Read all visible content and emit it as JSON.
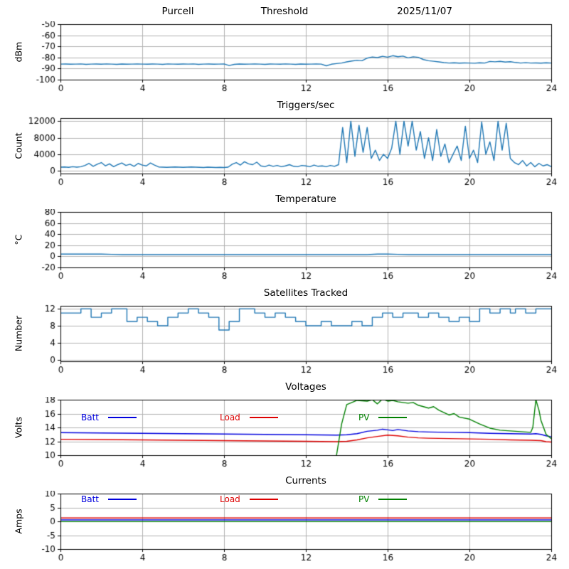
{
  "style": {
    "background": "#ffffff",
    "grid_color": "#b0b0b0",
    "axis_color": "#000000",
    "tick_label_color": "#000000"
  },
  "chart_data": [
    {
      "id": "signal",
      "type": "line",
      "title_parts": [
        "Purcell",
        "Threshold",
        "2025/11/07"
      ],
      "ylabel": "dBm",
      "xlim": [
        0,
        24
      ],
      "ylim": [
        -100,
        -50
      ],
      "xticks": [
        0,
        4,
        8,
        12,
        16,
        20,
        24
      ],
      "yticks": [
        -50,
        -60,
        -70,
        -80,
        -90,
        -100
      ],
      "grid": true,
      "line_color": "#1f77b4",
      "x_start": 0,
      "x_step": 0.25,
      "values": [
        -86,
        -85.9,
        -86.1,
        -86,
        -85.8,
        -86.2,
        -86,
        -85.9,
        -86.1,
        -85.8,
        -86,
        -86.2,
        -85.9,
        -86.1,
        -86,
        -85.8,
        -86,
        -86.1,
        -85.9,
        -86,
        -86.2,
        -85.8,
        -86,
        -86.1,
        -85.9,
        -86,
        -85.8,
        -86.2,
        -86,
        -85.9,
        -86.1,
        -86,
        -85.8,
        -87.3,
        -86.2,
        -85.9,
        -86.1,
        -86,
        -85.8,
        -86,
        -86.2,
        -85.9,
        -86,
        -86.1,
        -85.8,
        -86,
        -86.2,
        -85.9,
        -86.1,
        -86,
        -85.8,
        -86,
        -87.5,
        -86.1,
        -85.5,
        -85,
        -84,
        -83.2,
        -82.6,
        -82.9,
        -80.6,
        -79.6,
        -80.1,
        -78.9,
        -79.7,
        -78.4,
        -79.3,
        -78.8,
        -80.4,
        -79.4,
        -79.9,
        -81.9,
        -82.9,
        -83.4,
        -84,
        -84.6,
        -85,
        -84.8,
        -85.1,
        -84.9,
        -85,
        -85.2,
        -84.8,
        -85,
        -83.6,
        -83.9,
        -83.5,
        -84.1,
        -83.8,
        -84.5,
        -85,
        -84.7,
        -85,
        -84.9,
        -85.1,
        -84.8,
        -85
      ]
    },
    {
      "id": "triggers",
      "type": "line",
      "title": "Triggers/sec",
      "ylabel": "Count",
      "xlim": [
        0,
        24
      ],
      "ylim": [
        -650,
        12750
      ],
      "xticks": [
        0,
        4,
        8,
        12,
        16,
        20,
        24
      ],
      "yticks": [
        0,
        4000,
        8000,
        12000
      ],
      "grid": true,
      "line_color": "#1f77b4",
      "x_start": 0,
      "x_step": 0.2,
      "values": [
        900,
        950,
        850,
        1000,
        900,
        1000,
        1300,
        1800,
        1100,
        1600,
        2000,
        1200,
        1700,
        1000,
        1500,
        1900,
        1300,
        1600,
        1100,
        1800,
        1400,
        1200,
        1900,
        1400,
        950,
        900,
        850,
        900,
        950,
        900,
        850,
        900,
        950,
        900,
        850,
        800,
        900,
        850,
        800,
        850,
        800,
        900,
        1600,
        2000,
        1400,
        2200,
        1700,
        1500,
        2100,
        1200,
        1000,
        1400,
        1100,
        1300,
        1000,
        1200,
        1500,
        1100,
        1000,
        1300,
        1200,
        1000,
        1400,
        1100,
        1200,
        1000,
        1300,
        1100,
        1500,
        10500,
        2000,
        12000,
        3500,
        11000,
        4500,
        10500,
        3000,
        5000,
        2500,
        4000,
        3000,
        5500,
        12000,
        4000,
        12000,
        6000,
        12000,
        5000,
        9500,
        3000,
        8000,
        2500,
        10000,
        3500,
        6500,
        2000,
        4000,
        6000,
        2500,
        10800,
        3000,
        5000,
        2000,
        11800,
        4000,
        7000,
        2500,
        12000,
        5000,
        11500,
        3000,
        2000,
        1500,
        2500,
        1200,
        2000,
        1000,
        1800,
        1200,
        1500,
        1000
      ]
    },
    {
      "id": "temperature",
      "type": "line",
      "title": "Temperature",
      "ylabel": "°C",
      "xlim": [
        0,
        24
      ],
      "ylim": [
        -20,
        80
      ],
      "xticks": [
        0,
        4,
        8,
        12,
        16,
        20,
        24
      ],
      "yticks": [
        -20,
        0,
        20,
        40,
        60,
        80
      ],
      "grid": true,
      "line_color": "#1f77b4",
      "x_start": 0,
      "x_step": 0.5,
      "values": [
        4,
        4,
        4,
        4,
        4,
        3.5,
        3,
        3,
        3,
        3,
        3,
        3,
        3,
        3,
        3,
        3,
        3,
        3,
        3,
        3,
        3,
        3,
        3,
        3,
        3,
        3,
        3,
        3,
        3,
        3,
        3,
        4,
        4,
        3.5,
        3,
        3,
        3,
        3,
        3,
        3,
        3,
        3,
        3,
        3,
        3,
        3,
        3,
        3,
        3
      ]
    },
    {
      "id": "satellites",
      "type": "line",
      "title": "Satellites Tracked",
      "ylabel": "Number",
      "xlim": [
        0,
        24
      ],
      "ylim": [
        -0.4,
        12.7
      ],
      "xticks": [
        0,
        4,
        8,
        12,
        16,
        20,
        24
      ],
      "yticks": [
        0,
        4,
        8,
        12
      ],
      "grid": true,
      "step": true,
      "line_color": "#1f77b4",
      "x_start": 0,
      "x_step": 0.25,
      "values": [
        11,
        11,
        11,
        11,
        12,
        12,
        10,
        10,
        11,
        11,
        12,
        12,
        12,
        9,
        9,
        10,
        10,
        9,
        9,
        8,
        8,
        10,
        10,
        11,
        11,
        12,
        12,
        11,
        11,
        10,
        10,
        7,
        7,
        9,
        9,
        12,
        12,
        12,
        11,
        11,
        10,
        10,
        11,
        11,
        10,
        10,
        9,
        9,
        8,
        8,
        8,
        9,
        9,
        8,
        8,
        8,
        8,
        9,
        9,
        8,
        8,
        10,
        10,
        11,
        11,
        10,
        10,
        11,
        11,
        11,
        10,
        10,
        11,
        11,
        10,
        10,
        9,
        9,
        10,
        10,
        9,
        9,
        12,
        12,
        11,
        11,
        12,
        12,
        11,
        12,
        12,
        11,
        11,
        12,
        12,
        12,
        12
      ]
    },
    {
      "id": "voltages",
      "type": "line",
      "title": "Voltages",
      "ylabel": "Volts",
      "xlim": [
        0,
        24
      ],
      "ylim": [
        10,
        18
      ],
      "xticks": [
        0,
        4,
        8,
        12,
        16,
        20,
        24
      ],
      "yticks": [
        10,
        12,
        14,
        16,
        18
      ],
      "grid": true,
      "legend": [
        {
          "label": "Batt",
          "color": "#0000dd"
        },
        {
          "label": "Load",
          "color": "#dd0000"
        },
        {
          "label": "PV",
          "color": "#008000"
        }
      ],
      "series": [
        {
          "name": "Batt",
          "color": "#0000dd",
          "x": [
            0,
            2,
            4,
            6,
            8,
            10,
            12,
            13.5,
            14,
            14.5,
            15,
            15.5,
            15.75,
            16,
            16.25,
            16.5,
            17,
            17.5,
            18,
            19,
            20,
            21,
            22,
            23,
            23.25,
            23.5,
            23.75,
            24
          ],
          "y": [
            13.25,
            13.2,
            13.15,
            13.1,
            13.05,
            13.0,
            12.95,
            12.9,
            12.95,
            13.1,
            13.45,
            13.6,
            13.75,
            13.65,
            13.55,
            13.7,
            13.5,
            13.4,
            13.35,
            13.3,
            13.25,
            13.15,
            13.1,
            13.05,
            13.1,
            13.0,
            12.8,
            12.65
          ]
        },
        {
          "name": "Load",
          "color": "#dd0000",
          "x": [
            0,
            2,
            4,
            6,
            8,
            10,
            12,
            13.5,
            14,
            14.5,
            15,
            15.5,
            16,
            16.5,
            17,
            17.5,
            18,
            19,
            20,
            21,
            22,
            23,
            23.5,
            23.75,
            24
          ],
          "y": [
            12.3,
            12.25,
            12.2,
            12.15,
            12.1,
            12.05,
            12.0,
            11.95,
            12.0,
            12.2,
            12.5,
            12.7,
            12.9,
            12.8,
            12.6,
            12.5,
            12.45,
            12.4,
            12.35,
            12.3,
            12.2,
            12.15,
            12.1,
            11.95,
            11.9
          ]
        },
        {
          "name": "PV",
          "color": "#008000",
          "x": [
            13.5,
            13.75,
            14,
            14.25,
            14.5,
            15,
            15.25,
            15.5,
            15.75,
            16,
            16.25,
            16.5,
            17,
            17.25,
            17.5,
            18,
            18.25,
            18.5,
            19,
            19.25,
            19.5,
            20,
            20.5,
            21,
            21.5,
            22,
            22.5,
            23,
            23.1,
            23.25,
            23.4,
            23.5,
            23.75,
            24
          ],
          "y": [
            10.0,
            14.5,
            17.3,
            17.6,
            17.9,
            17.8,
            18.0,
            17.4,
            18.1,
            17.8,
            17.9,
            17.7,
            17.5,
            17.6,
            17.2,
            16.8,
            17.0,
            16.5,
            15.8,
            16.0,
            15.5,
            15.2,
            14.5,
            13.9,
            13.6,
            13.5,
            13.4,
            13.3,
            14.0,
            18.0,
            16.5,
            15.0,
            13.0,
            12.4
          ]
        }
      ]
    },
    {
      "id": "currents",
      "type": "line",
      "title": "Currents",
      "ylabel": "Amps",
      "xlim": [
        0,
        24
      ],
      "ylim": [
        -10,
        10
      ],
      "xticks": [
        0,
        4,
        8,
        12,
        16,
        20,
        24
      ],
      "yticks": [
        -10,
        -5,
        0,
        5,
        10
      ],
      "grid": true,
      "legend": [
        {
          "label": "Batt",
          "color": "#0000dd"
        },
        {
          "label": "Load",
          "color": "#dd0000"
        },
        {
          "label": "PV",
          "color": "#008000"
        }
      ],
      "series": [
        {
          "name": "Batt",
          "color": "#0000dd",
          "x": [
            0,
            24
          ],
          "y": [
            0.5,
            0.5
          ]
        },
        {
          "name": "Load",
          "color": "#dd0000",
          "x": [
            0,
            24
          ],
          "y": [
            1.2,
            1.2
          ]
        },
        {
          "name": "PV",
          "color": "#008000",
          "x": [
            0,
            24
          ],
          "y": [
            -0.1,
            -0.1
          ]
        }
      ]
    }
  ]
}
